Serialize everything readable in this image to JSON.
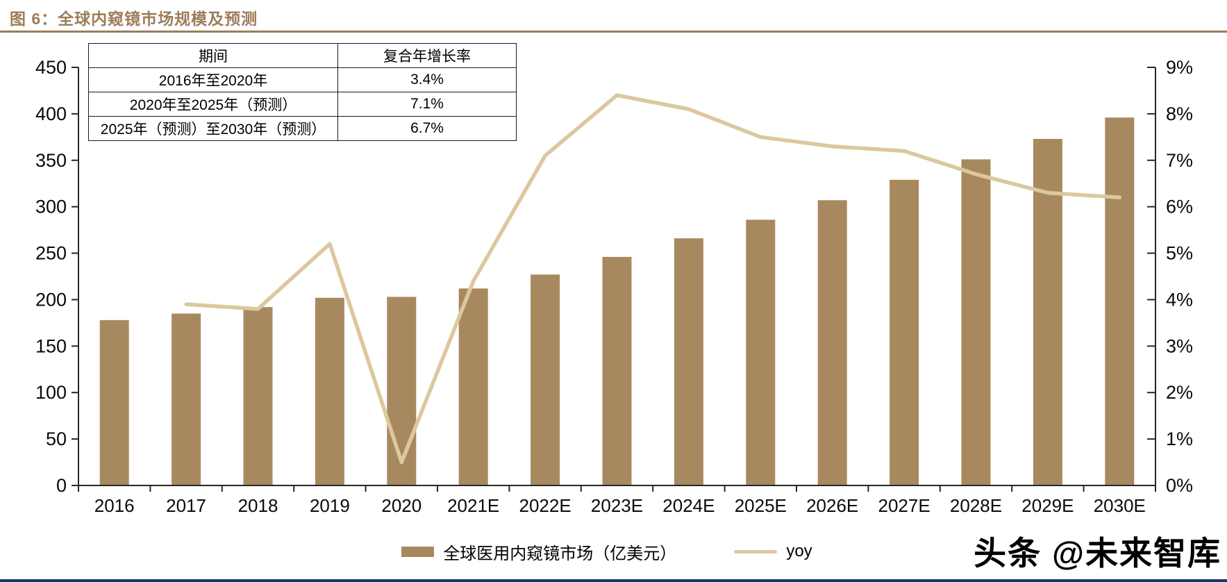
{
  "header": {
    "title": "图 6：全球内窥镜市场规模及预测"
  },
  "cagr_table": {
    "headers": [
      "期间",
      "复合年增长率"
    ],
    "rows": [
      [
        "2016年至2020年",
        "3.4%"
      ],
      [
        "2020年至2025年（预测）",
        "7.1%"
      ],
      [
        "2025年（预测）至2030年（预测）",
        "6.7%"
      ]
    ]
  },
  "chart_data": {
    "type": "combo",
    "title": "全球内窥镜市场规模及预测",
    "categories": [
      "2016",
      "2017",
      "2018",
      "2019",
      "2020",
      "2021E",
      "2022E",
      "2023E",
      "2024E",
      "2025E",
      "2026E",
      "2027E",
      "2028E",
      "2029E",
      "2030E"
    ],
    "series": [
      {
        "name": "全球医用内窥镜市场（亿美元）",
        "type": "bar",
        "axis": "left",
        "color": "#A8895F",
        "values": [
          178,
          185,
          192,
          202,
          203,
          212,
          227,
          246,
          266,
          286,
          307,
          329,
          351,
          373,
          396
        ]
      },
      {
        "name": "yoy",
        "type": "line",
        "axis": "right",
        "color": "#DCC89E",
        "values": [
          null,
          3.9,
          3.8,
          5.2,
          0.5,
          4.4,
          7.1,
          8.4,
          8.1,
          7.5,
          7.3,
          7.2,
          6.7,
          6.3,
          6.2
        ]
      }
    ],
    "left_axis": {
      "min": 0,
      "max": 450,
      "step": 50,
      "ticks": [
        0,
        50,
        100,
        150,
        200,
        250,
        300,
        350,
        400,
        450
      ]
    },
    "right_axis": {
      "min": 0,
      "max": 9,
      "step": 1,
      "ticks": [
        0,
        1,
        2,
        3,
        4,
        5,
        6,
        7,
        8,
        9
      ],
      "suffix": "%"
    },
    "grid": false,
    "legend_position": "bottom"
  },
  "legend": {
    "market_label": "全球医用内窥镜市场（亿美元）",
    "yoy_label": "yoy"
  },
  "watermark": "头条 @未来智库",
  "colors": {
    "title": "#9C7C58",
    "bar": "#A8895F",
    "line": "#DCC89E",
    "axis": "#262626",
    "bottom_bar": "#203864"
  }
}
